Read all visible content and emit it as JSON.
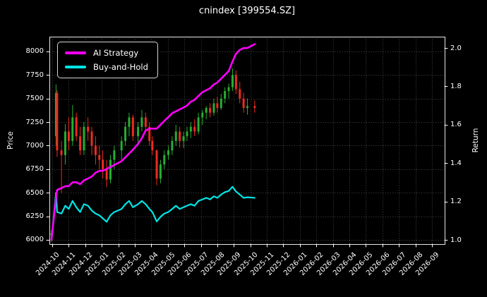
{
  "title": "cnindex [399554.SZ]",
  "colors": {
    "background": "#000000",
    "text": "#ffffff",
    "grid": "#4c4c4c",
    "spine": "#e8e8e8",
    "tick": "#ffffff",
    "candle_up": "#27ad31",
    "candle_down": "#ee2b1f",
    "ai_line": "#ff00ff",
    "bh_line": "#00e5e5",
    "legend_border": "#d4d4d4"
  },
  "legend": {
    "items": [
      {
        "label": "AI Strategy",
        "color": "#ff00ff"
      },
      {
        "label": "Buy-and-Hold",
        "color": "#00e5e5"
      }
    ]
  },
  "chart_data": {
    "type": "candlestick+line",
    "title": "cnindex [399554.SZ]",
    "xlabel": "",
    "grid": "dotted",
    "legend_position": "upper left",
    "left_axis": {
      "label": "Price",
      "ticks": [
        {
          "v": 6000,
          "label": "6000"
        },
        {
          "v": 6250,
          "label": "6250"
        },
        {
          "v": 6500,
          "label": "6500"
        },
        {
          "v": 6750,
          "label": "6750"
        },
        {
          "v": 7000,
          "label": "7000"
        },
        {
          "v": 7250,
          "label": "7250"
        },
        {
          "v": 7500,
          "label": "7500"
        },
        {
          "v": 7750,
          "label": "7750"
        },
        {
          "v": 8000,
          "label": "8000"
        }
      ],
      "range": [
        5955,
        8157
      ]
    },
    "right_axis": {
      "label": "Return",
      "ticks": [
        {
          "v": 1.0,
          "label": "1.0"
        },
        {
          "v": 1.2,
          "label": "1.2"
        },
        {
          "v": 1.4,
          "label": "1.4"
        },
        {
          "v": 1.6,
          "label": "1.6"
        },
        {
          "v": 1.8,
          "label": "1.8"
        },
        {
          "v": 2.0,
          "label": "2.0"
        }
      ],
      "range": [
        0.978,
        2.059
      ]
    },
    "x_axis": {
      "tick_labels": [
        "2024-10",
        "2024-11",
        "2024-12",
        "2025-01",
        "2025-02",
        "2025-03",
        "2025-04",
        "2025-05",
        "2025-06",
        "2025-07",
        "2025-08",
        "2025-09",
        "2025-10",
        "2025-11",
        "2025-12",
        "2026-01",
        "2026-02",
        "2026-03",
        "2026-04",
        "2026-05",
        "2026-06",
        "2026-07",
        "2026-08",
        "2026-09"
      ]
    },
    "dates": [
      "2024-09-30",
      "2024-10-08",
      "2024-10-10",
      "2024-10-18",
      "2024-10-25",
      "2024-11-01",
      "2024-11-08",
      "2024-11-15",
      "2024-11-22",
      "2024-11-29",
      "2024-12-06",
      "2024-12-13",
      "2024-12-20",
      "2024-12-27",
      "2025-01-03",
      "2025-01-10",
      "2025-01-17",
      "2025-01-24",
      "2025-02-07",
      "2025-02-14",
      "2025-02-21",
      "2025-02-28",
      "2025-03-07",
      "2025-03-14",
      "2025-03-21",
      "2025-03-28",
      "2025-04-03",
      "2025-04-11",
      "2025-04-18",
      "2025-04-25",
      "2025-05-02",
      "2025-05-09",
      "2025-05-16",
      "2025-05-23",
      "2025-05-30",
      "2025-06-06",
      "2025-06-13",
      "2025-06-20",
      "2025-06-27",
      "2025-07-04",
      "2025-07-11",
      "2025-07-18",
      "2025-07-25",
      "2025-08-01",
      "2025-08-08",
      "2025-08-15",
      "2025-08-22",
      "2025-08-29",
      "2025-09-05",
      "2025-09-12",
      "2025-09-19",
      "2025-09-26",
      "2025-10-09"
    ],
    "series": [
      {
        "name": "cnindex OHLC",
        "type": "candlestick",
        "axis": "left",
        "open": [
          6050,
          7100,
          7560,
          6950,
          6900,
          7150,
          7050,
          7300,
          7100,
          6950,
          7200,
          7150,
          7000,
          6900,
          6850,
          6750,
          6640,
          6850,
          6950,
          7050,
          7200,
          7300,
          7100,
          7200,
          7300,
          7200,
          7050,
          6950,
          6650,
          6800,
          6900,
          6950,
          7050,
          7150,
          7050,
          7100,
          7150,
          7200,
          7150,
          7300,
          7350,
          7400,
          7350,
          7450,
          7400,
          7500,
          7580,
          7620,
          7750,
          7600,
          7500,
          7400,
          7420
        ],
        "high": [
          6100,
          7650,
          7590,
          7050,
          7230,
          7300,
          7430,
          7350,
          7200,
          7250,
          7300,
          7200,
          7100,
          7000,
          6950,
          6850,
          6900,
          7000,
          7100,
          7250,
          7350,
          7330,
          7250,
          7380,
          7350,
          7250,
          7100,
          6960,
          6850,
          6950,
          7000,
          7100,
          7220,
          7200,
          7150,
          7200,
          7250,
          7280,
          7350,
          7380,
          7420,
          7450,
          7500,
          7520,
          7550,
          7620,
          7660,
          7820,
          7800,
          7680,
          7560,
          7500,
          7480
        ],
        "low": [
          5980,
          7000,
          6880,
          6500,
          6800,
          6950,
          7000,
          7050,
          6900,
          6900,
          7050,
          6900,
          6800,
          6750,
          6650,
          6560,
          6600,
          6750,
          6850,
          7000,
          7100,
          7050,
          7000,
          7150,
          7150,
          7000,
          6900,
          6580,
          6600,
          6750,
          6850,
          6900,
          7000,
          6980,
          6975,
          7050,
          7080,
          7100,
          7120,
          7220,
          7280,
          7300,
          7320,
          7350,
          7380,
          7450,
          7500,
          7580,
          7550,
          7450,
          7350,
          7330,
          7350
        ],
        "close": [
          6070,
          7560,
          6950,
          6900,
          7150,
          7050,
          7300,
          7100,
          6950,
          7200,
          7150,
          7000,
          6900,
          6850,
          6750,
          6640,
          6850,
          6950,
          7050,
          7200,
          7300,
          7100,
          7200,
          7300,
          7200,
          7050,
          6950,
          6650,
          6800,
          6900,
          6950,
          7050,
          7150,
          7050,
          7100,
          7150,
          7200,
          7150,
          7300,
          7350,
          7400,
          7350,
          7450,
          7400,
          7500,
          7580,
          7620,
          7750,
          7600,
          7500,
          7400,
          7420,
          7400
        ]
      },
      {
        "name": "AI Strategy",
        "type": "line",
        "axis": "right",
        "color": "#ff00ff",
        "values": [
          1.0,
          1.22,
          1.26,
          1.27,
          1.28,
          1.28,
          1.3,
          1.3,
          1.29,
          1.31,
          1.32,
          1.33,
          1.35,
          1.36,
          1.36,
          1.37,
          1.38,
          1.39,
          1.41,
          1.43,
          1.45,
          1.47,
          1.5,
          1.53,
          1.57,
          1.58,
          1.58,
          1.58,
          1.6,
          1.62,
          1.64,
          1.66,
          1.67,
          1.68,
          1.69,
          1.7,
          1.72,
          1.73,
          1.75,
          1.77,
          1.78,
          1.79,
          1.81,
          1.82,
          1.84,
          1.86,
          1.88,
          1.93,
          1.97,
          1.99,
          2.0,
          2.0,
          2.02
        ]
      },
      {
        "name": "Buy-and-Hold",
        "type": "line",
        "axis": "right",
        "color": "#00e5e5",
        "values": [
          1.0,
          1.245,
          1.145,
          1.137,
          1.178,
          1.161,
          1.203,
          1.17,
          1.145,
          1.186,
          1.178,
          1.153,
          1.137,
          1.128,
          1.112,
          1.094,
          1.128,
          1.145,
          1.161,
          1.186,
          1.203,
          1.17,
          1.186,
          1.203,
          1.186,
          1.161,
          1.145,
          1.096,
          1.12,
          1.137,
          1.145,
          1.161,
          1.178,
          1.161,
          1.17,
          1.178,
          1.186,
          1.178,
          1.203,
          1.211,
          1.219,
          1.211,
          1.227,
          1.219,
          1.236,
          1.249,
          1.255,
          1.277,
          1.252,
          1.236,
          1.219,
          1.222,
          1.219
        ]
      }
    ]
  }
}
